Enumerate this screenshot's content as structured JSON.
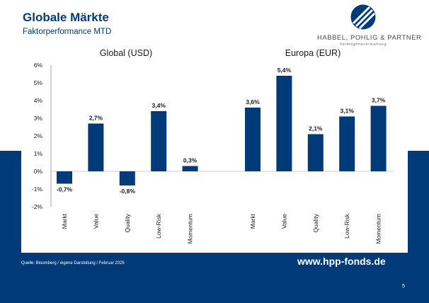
{
  "header": {
    "title": "Globale Märkte",
    "subtitle": "Faktorperformance MTD"
  },
  "logo": {
    "name": "HABBEL, POHLIG & PARTNER",
    "tagline": "Vermögensverwaltung",
    "icon": "hpp-logo-mark"
  },
  "footer": {
    "source": "Quelle: Bloomberg / eigene Darstellung / Februar 2025",
    "url": "www.hpp-fonds.de",
    "page_number": "5"
  },
  "colors": {
    "brand": "#003a78",
    "bar": "#003a78",
    "text": "#1a1a1a",
    "grid": "#d0d0d0"
  },
  "chart_data": {
    "type": "bar",
    "value_unit": "%",
    "ylim": [
      -2,
      6
    ],
    "yticks": [
      "-2%",
      "-1%",
      "0%",
      "1%",
      "2%",
      "3%",
      "4%",
      "5%",
      "6%"
    ],
    "grid": false,
    "legend": "none",
    "groups": [
      {
        "title": "Global (USD)",
        "categories": [
          "Markt",
          "Value",
          "Quality",
          "Low-Risk",
          "Momentum"
        ],
        "values": [
          -0.7,
          2.7,
          -0.8,
          3.4,
          0.3
        ],
        "labels": [
          "-0,7%",
          "2,7%",
          "-0,8%",
          "3,4%",
          "0,3%"
        ]
      },
      {
        "title": "Europa (EUR)",
        "categories": [
          "Markt",
          "Value",
          "Quality",
          "Low-Risk",
          "Momentum"
        ],
        "values": [
          3.6,
          5.4,
          2.1,
          3.1,
          3.7
        ],
        "labels": [
          "3,6%",
          "5,4%",
          "2,1%",
          "3,1%",
          "3,7%"
        ]
      }
    ]
  }
}
